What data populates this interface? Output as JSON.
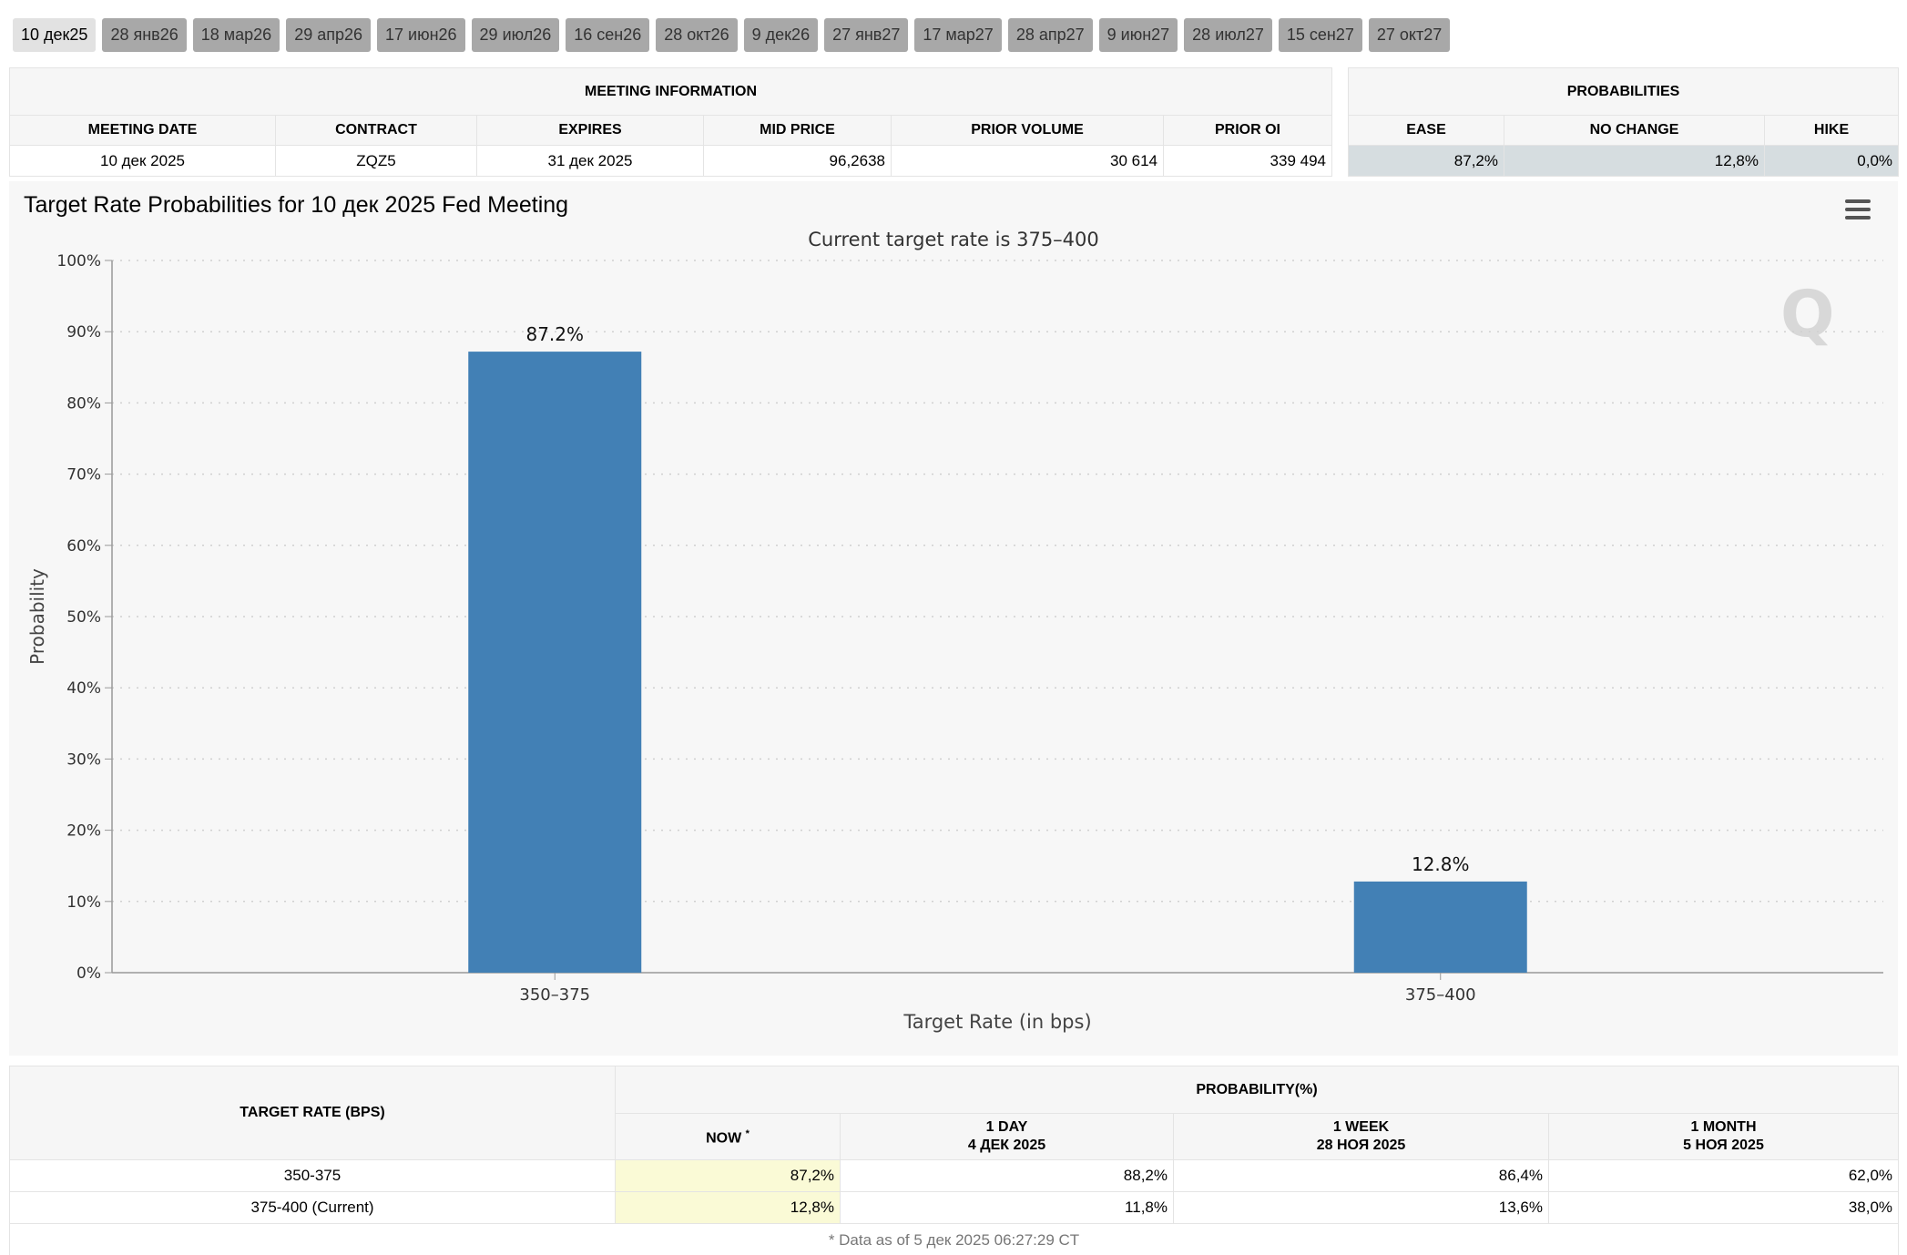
{
  "tabs": [
    "10 дек25",
    "28 янв26",
    "18 мар26",
    "29 апр26",
    "17 июн26",
    "29 июл26",
    "16 сен26",
    "28 окт26",
    "9 дек26",
    "27 янв27",
    "17 мар27",
    "28 апр27",
    "9 июн27",
    "28 июл27",
    "15 сен27",
    "27 окт27"
  ],
  "active_tab": 0,
  "meeting_info": {
    "heading": "MEETING INFORMATION",
    "columns": [
      "MEETING DATE",
      "CONTRACT",
      "EXPIRES",
      "MID PRICE",
      "PRIOR VOLUME",
      "PRIOR OI"
    ],
    "row": [
      "10 дек 2025",
      "ZQZ5",
      "31 дек 2025",
      "96,2638",
      "30 614",
      "339 494"
    ]
  },
  "probabilities": {
    "heading": "PROBABILITIES",
    "columns": [
      "EASE",
      "NO CHANGE",
      "HIKE"
    ],
    "row": [
      "87,2%",
      "12,8%",
      "0,0%"
    ]
  },
  "chart": {
    "title": "Target Rate Probabilities for 10 дек 2025 Fed Meeting",
    "subtitle": "Current target rate is 375–400"
  },
  "chart_data": {
    "type": "bar",
    "title": "Target Rate Probabilities for 10 дек 2025 Fed Meeting",
    "subtitle": "Current target rate is 375–400",
    "categories": [
      "350–375",
      "375–400"
    ],
    "values": [
      87.2,
      12.8
    ],
    "data_labels": [
      "87.2%",
      "12.8%"
    ],
    "xlabel": "Target Rate (in bps)",
    "ylabel": "Probability",
    "ylim": [
      0,
      100
    ],
    "yticks": [
      "0%",
      "10%",
      "20%",
      "30%",
      "40%",
      "50%",
      "60%",
      "70%",
      "80%",
      "90%",
      "100%"
    ],
    "grid": true,
    "bar_color": "#4280b5"
  },
  "history": {
    "left_heading": "TARGET RATE (BPS)",
    "group_heading": "PROBABILITY(%)",
    "now_label": "NOW",
    "now_mark": "*",
    "columns": [
      {
        "line1": "1 DAY",
        "line2": "4 ДЕК 2025"
      },
      {
        "line1": "1 WEEK",
        "line2": "28 НОЯ 2025"
      },
      {
        "line1": "1 MONTH",
        "line2": "5 НОЯ 2025"
      }
    ],
    "rows": [
      {
        "rate": "350-375",
        "now": "87,2%",
        "day": "88,2%",
        "week": "86,4%",
        "month": "62,0%"
      },
      {
        "rate": "375-400 (Current)",
        "now": "12,8%",
        "day": "11,8%",
        "week": "13,6%",
        "month": "38,0%"
      }
    ],
    "note": "* Data as of 5 дек 2025 06:27:29 CT"
  }
}
